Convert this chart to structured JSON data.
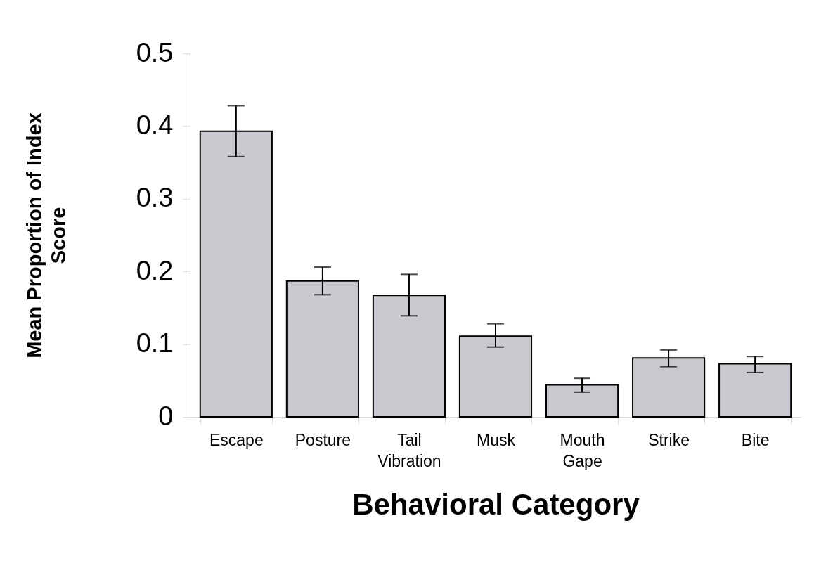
{
  "chart_data": {
    "type": "bar",
    "xlabel": "Behavioral Category",
    "ylabel": "Mean Proportion of Index Score",
    "categories": [
      "Escape",
      "Posture",
      "Tail Vibration",
      "Musk",
      "Mouth Gape",
      "Strike",
      "Bite"
    ],
    "values": [
      0.393,
      0.187,
      0.167,
      0.111,
      0.044,
      0.081,
      0.073
    ],
    "errors": [
      [
        0.358,
        0.428
      ],
      [
        0.168,
        0.206
      ],
      [
        0.139,
        0.196
      ],
      [
        0.096,
        0.128
      ],
      [
        0.034,
        0.053
      ],
      [
        0.069,
        0.092
      ],
      [
        0.061,
        0.083
      ]
    ],
    "color": "#c8c9ce",
    "ylim": [
      0,
      0.5
    ],
    "yticks": [
      0,
      0.1,
      0.2,
      0.3,
      0.4,
      0.5
    ],
    "grid": false
  }
}
